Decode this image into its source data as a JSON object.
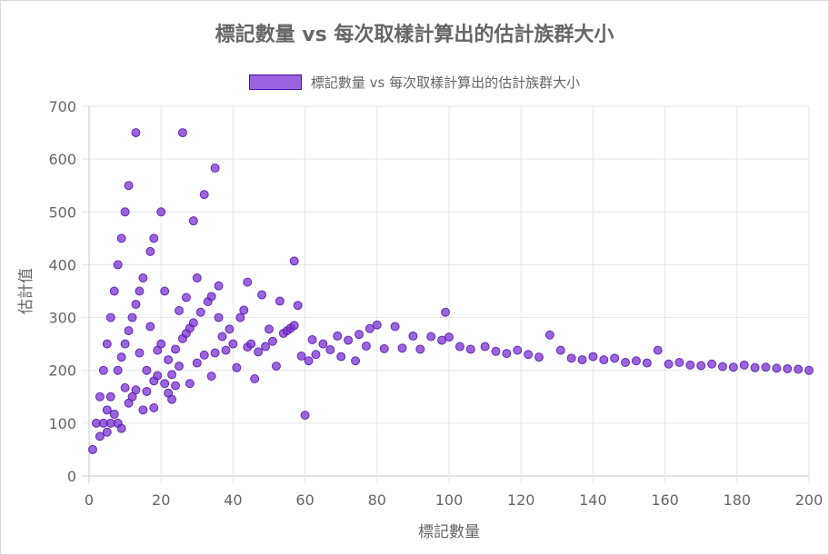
{
  "chart_data": {
    "type": "scatter",
    "title": "標記數量 vs 每次取樣計算出的估計族群大小",
    "xlabel": "標記數量",
    "ylabel": "估計值",
    "legend_label": "標記數量 vs 每次取樣計算出的估計族群大小",
    "legend_position": "top",
    "grid": true,
    "xlim": [
      0,
      200
    ],
    "ylim": [
      0,
      700
    ],
    "x_ticks": [
      "0",
      "20",
      "40",
      "60",
      "80",
      "100",
      "120",
      "140",
      "160",
      "180",
      "200"
    ],
    "y_ticks": [
      "0",
      "100",
      "200",
      "300",
      "400",
      "500",
      "600",
      "700"
    ],
    "colors": {
      "point_fill": "#7B2FD2",
      "point_stroke": "#4A0FA8",
      "legend_fill": "#9b63e0",
      "grid": "#e6e6e6",
      "axis": "#c8c8c8",
      "text": "#666666"
    },
    "series": [
      {
        "points": [
          [
            1,
            50
          ],
          [
            2,
            100
          ],
          [
            3,
            150
          ],
          [
            3,
            75
          ],
          [
            4,
            200
          ],
          [
            4,
            100
          ],
          [
            5,
            250
          ],
          [
            5,
            125
          ],
          [
            5,
            83
          ],
          [
            6,
            300
          ],
          [
            6,
            150
          ],
          [
            6,
            100
          ],
          [
            7,
            350
          ],
          [
            7,
            117
          ],
          [
            8,
            400
          ],
          [
            8,
            200
          ],
          [
            8,
            100
          ],
          [
            9,
            450
          ],
          [
            9,
            225
          ],
          [
            9,
            90
          ],
          [
            10,
            500
          ],
          [
            10,
            250
          ],
          [
            10,
            167
          ],
          [
            11,
            550
          ],
          [
            11,
            275
          ],
          [
            11,
            138
          ],
          [
            12,
            300
          ],
          [
            12,
            150
          ],
          [
            13,
            650
          ],
          [
            13,
            325
          ],
          [
            13,
            163
          ],
          [
            14,
            350
          ],
          [
            14,
            233
          ],
          [
            15,
            375
          ],
          [
            15,
            125
          ],
          [
            16,
            200
          ],
          [
            16,
            160
          ],
          [
            17,
            425
          ],
          [
            17,
            283
          ],
          [
            18,
            450
          ],
          [
            18,
            180
          ],
          [
            18,
            129
          ],
          [
            19,
            238
          ],
          [
            19,
            190
          ],
          [
            20,
            500
          ],
          [
            20,
            250
          ],
          [
            21,
            350
          ],
          [
            21,
            175
          ],
          [
            22,
            220
          ],
          [
            22,
            157
          ],
          [
            23,
            192
          ],
          [
            23,
            145
          ],
          [
            24,
            240
          ],
          [
            24,
            171
          ],
          [
            25,
            313
          ],
          [
            25,
            208
          ],
          [
            26,
            650
          ],
          [
            26,
            260
          ],
          [
            27,
            338
          ],
          [
            27,
            270
          ],
          [
            28,
            280
          ],
          [
            28,
            175
          ],
          [
            29,
            483
          ],
          [
            29,
            290
          ],
          [
            30,
            375
          ],
          [
            30,
            214
          ],
          [
            31,
            310
          ],
          [
            32,
            533
          ],
          [
            32,
            229
          ],
          [
            33,
            330
          ],
          [
            34,
            340
          ],
          [
            34,
            189
          ],
          [
            35,
            583
          ],
          [
            35,
            233
          ],
          [
            36,
            360
          ],
          [
            36,
            300
          ],
          [
            37,
            264
          ],
          [
            38,
            238
          ],
          [
            39,
            278
          ],
          [
            40,
            250
          ],
          [
            41,
            205
          ],
          [
            42,
            300
          ],
          [
            43,
            314
          ],
          [
            44,
            367
          ],
          [
            44,
            244
          ],
          [
            45,
            250
          ],
          [
            46,
            184
          ],
          [
            47,
            235
          ],
          [
            48,
            343
          ],
          [
            49,
            245
          ],
          [
            50,
            278
          ],
          [
            51,
            255
          ],
          [
            52,
            208
          ],
          [
            53,
            331
          ],
          [
            54,
            270
          ],
          [
            55,
            275
          ],
          [
            56,
            280
          ],
          [
            57,
            407
          ],
          [
            57,
            285
          ],
          [
            58,
            323
          ],
          [
            59,
            227
          ],
          [
            60,
            115
          ],
          [
            61,
            218
          ],
          [
            62,
            258
          ],
          [
            63,
            230
          ],
          [
            65,
            250
          ],
          [
            67,
            239
          ],
          [
            69,
            265
          ],
          [
            70,
            226
          ],
          [
            72,
            257
          ],
          [
            74,
            218
          ],
          [
            75,
            268
          ],
          [
            77,
            246
          ],
          [
            78,
            279
          ],
          [
            80,
            286
          ],
          [
            82,
            241
          ],
          [
            85,
            283
          ],
          [
            87,
            242
          ],
          [
            90,
            265
          ],
          [
            92,
            240
          ],
          [
            95,
            264
          ],
          [
            98,
            257
          ],
          [
            99,
            310
          ],
          [
            100,
            263
          ],
          [
            103,
            245
          ],
          [
            106,
            240
          ],
          [
            110,
            245
          ],
          [
            113,
            236
          ],
          [
            116,
            232
          ],
          [
            119,
            238
          ],
          [
            122,
            230
          ],
          [
            125,
            225
          ],
          [
            128,
            267
          ],
          [
            131,
            238
          ],
          [
            134,
            223
          ],
          [
            137,
            220
          ],
          [
            140,
            226
          ],
          [
            143,
            220
          ],
          [
            146,
            223
          ],
          [
            149,
            215
          ],
          [
            152,
            218
          ],
          [
            155,
            214
          ],
          [
            158,
            238
          ],
          [
            161,
            212
          ],
          [
            164,
            215
          ],
          [
            167,
            210
          ],
          [
            170,
            209
          ],
          [
            173,
            212
          ],
          [
            176,
            207
          ],
          [
            179,
            206
          ],
          [
            182,
            210
          ],
          [
            185,
            205
          ],
          [
            188,
            206
          ],
          [
            191,
            204
          ],
          [
            194,
            203
          ],
          [
            197,
            202
          ],
          [
            200,
            200
          ]
        ]
      }
    ]
  }
}
